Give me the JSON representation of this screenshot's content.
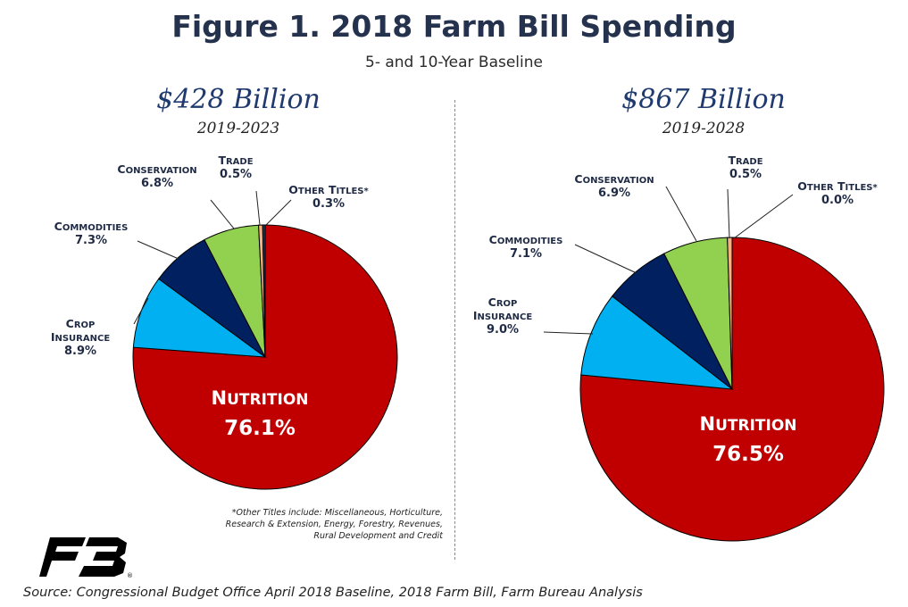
{
  "title": "Figure 1. 2018 Farm Bill Spending",
  "subtitle": "5- and 10-Year Baseline",
  "footnote": {
    "line1": "*Other Titles include: Miscellaneous, Horticulture,",
    "line2": "Research & Extension, Energy, Forestry, Revenues,",
    "line3": "Rural Development and Credit"
  },
  "source": "Source: Congressional Budget Office April 2018 Baseline, 2018 Farm Bill, Farm Bureau Analysis",
  "logo": {
    "icon": "farm-bureau-logo",
    "mark": "®"
  },
  "colors": {
    "nutrition": "#c00000",
    "crop_insurance": "#00b0f0",
    "commodities": "#002060",
    "conservation": "#92d050",
    "trade": "#f4b183",
    "other": "#1f3864"
  },
  "chart_data": [
    {
      "type": "pie",
      "title": "$428 Billion",
      "subtitle": "2019-2023",
      "slices": [
        {
          "key": "nutrition",
          "label": "NUTRITION",
          "label_lines": [
            "NUTRITION"
          ],
          "value": 76.1,
          "display": "76.1%"
        },
        {
          "key": "crop_insurance",
          "label": "CROP INSURANCE",
          "label_lines": [
            "CROP",
            "INSURANCE"
          ],
          "value": 8.9,
          "display": "8.9%"
        },
        {
          "key": "commodities",
          "label": "COMMODITIES",
          "label_lines": [
            "COMMODITIES"
          ],
          "value": 7.3,
          "display": "7.3%"
        },
        {
          "key": "conservation",
          "label": "CONSERVATION",
          "label_lines": [
            "CONSERVATION"
          ],
          "value": 6.8,
          "display": "6.8%"
        },
        {
          "key": "trade",
          "label": "TRADE",
          "label_lines": [
            "TRADE"
          ],
          "value": 0.5,
          "display": "0.5%"
        },
        {
          "key": "other",
          "label": "OTHER TITLES*",
          "label_lines": [
            "OTHER TITLES*"
          ],
          "value": 0.3,
          "display": "0.3%"
        }
      ]
    },
    {
      "type": "pie",
      "title": "$867 Billion",
      "subtitle": "2019-2028",
      "slices": [
        {
          "key": "nutrition",
          "label": "NUTRITION",
          "label_lines": [
            "NUTRITION"
          ],
          "value": 76.5,
          "display": "76.5%"
        },
        {
          "key": "crop_insurance",
          "label": "CROP INSURANCE",
          "label_lines": [
            "CROP",
            "INSURANCE"
          ],
          "value": 9.0,
          "display": "9.0%"
        },
        {
          "key": "commodities",
          "label": "COMMODITIES",
          "label_lines": [
            "COMMODITIES"
          ],
          "value": 7.1,
          "display": "7.1%"
        },
        {
          "key": "conservation",
          "label": "CONSERVATION",
          "label_lines": [
            "CONSERVATION"
          ],
          "value": 6.9,
          "display": "6.9%"
        },
        {
          "key": "trade",
          "label": "TRADE",
          "label_lines": [
            "TRADE"
          ],
          "value": 0.5,
          "display": "0.5%"
        },
        {
          "key": "other",
          "label": "OTHER TITLES*",
          "label_lines": [
            "OTHER TITLES*"
          ],
          "value": 0.0,
          "display": "0.0%"
        }
      ]
    }
  ]
}
